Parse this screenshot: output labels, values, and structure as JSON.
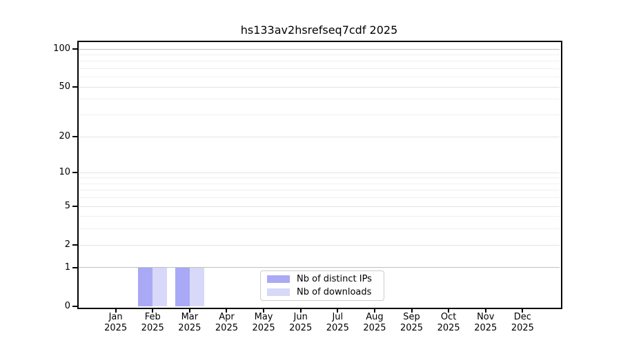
{
  "chart_data": {
    "type": "bar",
    "title": "hs133av2hsrefseq7cdf 2025",
    "x": {
      "months": [
        "Jan",
        "Feb",
        "Mar",
        "Apr",
        "May",
        "Jun",
        "Jul",
        "Aug",
        "Sep",
        "Oct",
        "Nov",
        "Dec"
      ],
      "year": "2025"
    },
    "series": [
      {
        "name": "Nb of distinct IPs",
        "color": "#a9a9f6",
        "values": [
          0,
          1,
          1,
          0,
          0,
          0,
          0,
          0,
          0,
          0,
          0,
          0
        ]
      },
      {
        "name": "Nb of downloads",
        "color": "#d8d8f9",
        "values": [
          0,
          1,
          1,
          0,
          0,
          0,
          0,
          0,
          0,
          0,
          0,
          0
        ]
      }
    ],
    "y_axis": {
      "scale": "log1p",
      "ticks": [
        0,
        1,
        2,
        5,
        10,
        20,
        50,
        100
      ],
      "strong_grid_ticks": [
        1,
        100
      ],
      "minor_gridlines": [
        3,
        4,
        6,
        7,
        8,
        9,
        30,
        40,
        60,
        70,
        80,
        90
      ],
      "max": 113.5
    },
    "legend": {
      "position": "bottom-center",
      "items": [
        "Nb of distinct IPs",
        "Nb of downloads"
      ]
    },
    "grid": "horizontal",
    "colors": {
      "axis": "#000000",
      "text": "#000000",
      "strong_grid": "#bfbfbf",
      "major_grid": "#e2e2e2",
      "minor_grid": "#efefef"
    }
  }
}
